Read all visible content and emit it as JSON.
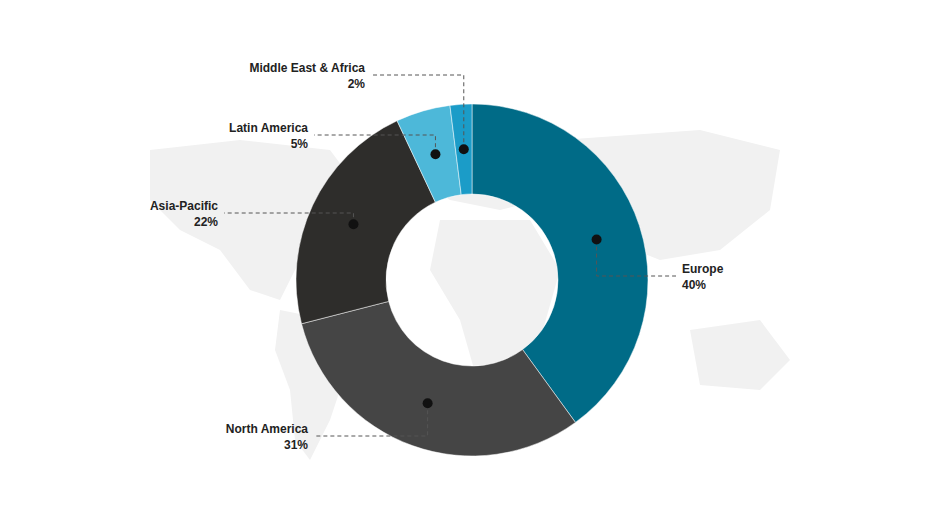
{
  "chart_data": {
    "type": "donut",
    "categories": [
      "Europe",
      "North America",
      "Asia-Pacific",
      "Latin America",
      "Middle East & Africa"
    ],
    "values": [
      40,
      31,
      22,
      5,
      2
    ],
    "value_labels": [
      "40%",
      "31%",
      "22%",
      "5%",
      "2%"
    ],
    "colors": [
      "#006b87",
      "#454545",
      "#2e2d2b",
      "#4db8d9",
      "#1b9cc8"
    ],
    "data_labels": true
  }
}
